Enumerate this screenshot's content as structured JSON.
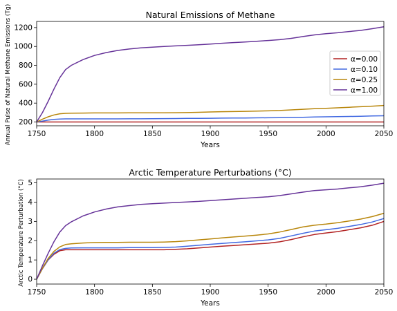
{
  "chart_data": [
    {
      "type": "line",
      "title": "Natural Emissions of Methane",
      "xlabel": "Years",
      "ylabel": "Annual Pulse of Natural Methane Emissions (Tg)",
      "xlim": [
        1750,
        2050
      ],
      "ylim": [
        160,
        1265
      ],
      "xticks": [
        1750,
        1800,
        1850,
        1900,
        1950,
        2000,
        2050
      ],
      "yticks": [
        200,
        400,
        600,
        800,
        1000,
        1200
      ],
      "legend": "center-right",
      "grid": false,
      "x": [
        1750,
        1755,
        1760,
        1765,
        1770,
        1775,
        1780,
        1790,
        1800,
        1810,
        1820,
        1830,
        1840,
        1850,
        1860,
        1870,
        1880,
        1890,
        1900,
        1910,
        1920,
        1930,
        1940,
        1950,
        1960,
        1970,
        1980,
        1990,
        2000,
        2010,
        2020,
        2030,
        2040,
        2050
      ],
      "series": [
        {
          "name": "α=0.00",
          "color": "#b22222",
          "values": [
            200,
            200,
            200,
            200,
            200,
            200,
            200,
            200,
            200,
            200,
            200,
            200,
            200,
            200,
            200,
            200,
            200,
            200,
            200,
            200,
            200,
            200,
            200,
            200,
            200,
            200,
            200,
            200,
            200,
            200,
            200,
            200,
            200,
            200
          ]
        },
        {
          "name": "α=0.10",
          "color": "#4169e1",
          "values": [
            200,
            210,
            220,
            227,
            231,
            233,
            233,
            233,
            233,
            233,
            233,
            234,
            234,
            235,
            236,
            237,
            238,
            239,
            240,
            241,
            242,
            243,
            244,
            245,
            246,
            248,
            250,
            253,
            255,
            257,
            259,
            261,
            264,
            266
          ]
        },
        {
          "name": "α=0.25",
          "color": "#b8860b",
          "values": [
            200,
            230,
            255,
            275,
            287,
            292,
            294,
            295,
            296,
            296,
            296,
            297,
            297,
            297,
            297,
            298,
            300,
            303,
            306,
            309,
            311,
            313,
            315,
            318,
            322,
            328,
            335,
            341,
            345,
            350,
            356,
            362,
            368,
            375
          ]
        },
        {
          "name": "α=1.00",
          "color": "#663399",
          "values": [
            200,
            300,
            420,
            550,
            670,
            755,
            800,
            860,
            905,
            935,
            958,
            973,
            985,
            993,
            1000,
            1006,
            1012,
            1018,
            1026,
            1034,
            1041,
            1048,
            1055,
            1063,
            1072,
            1086,
            1105,
            1122,
            1135,
            1145,
            1158,
            1170,
            1188,
            1208
          ]
        }
      ]
    },
    {
      "type": "line",
      "title": "Arctic Temperature Perturbations (°C)",
      "xlabel": "Years",
      "ylabel": "Arctic Temperature Perturbation (°C)",
      "xlim": [
        1750,
        2050
      ],
      "ylim": [
        -0.25,
        5.2
      ],
      "xticks": [
        1750,
        1800,
        1850,
        1900,
        1950,
        2000,
        2050
      ],
      "yticks": [
        0,
        1,
        2,
        3,
        4,
        5
      ],
      "grid": false,
      "x": [
        1750,
        1755,
        1760,
        1765,
        1770,
        1775,
        1780,
        1790,
        1800,
        1810,
        1820,
        1830,
        1840,
        1850,
        1860,
        1870,
        1880,
        1890,
        1900,
        1910,
        1920,
        1930,
        1940,
        1950,
        1960,
        1970,
        1980,
        1990,
        2000,
        2010,
        2020,
        2030,
        2040,
        2050
      ],
      "series": [
        {
          "name": "α=0.00",
          "color": "#b22222",
          "values": [
            0,
            0.55,
            1.0,
            1.3,
            1.48,
            1.53,
            1.53,
            1.53,
            1.53,
            1.53,
            1.53,
            1.53,
            1.53,
            1.53,
            1.53,
            1.55,
            1.58,
            1.62,
            1.67,
            1.71,
            1.75,
            1.79,
            1.83,
            1.87,
            1.94,
            2.06,
            2.2,
            2.32,
            2.4,
            2.47,
            2.57,
            2.67,
            2.8,
            3.0
          ]
        },
        {
          "name": "α=0.10",
          "color": "#4169e1",
          "values": [
            0,
            0.56,
            1.02,
            1.35,
            1.54,
            1.6,
            1.62,
            1.63,
            1.63,
            1.63,
            1.63,
            1.64,
            1.64,
            1.64,
            1.65,
            1.67,
            1.71,
            1.76,
            1.81,
            1.86,
            1.9,
            1.94,
            1.99,
            2.04,
            2.12,
            2.25,
            2.38,
            2.5,
            2.57,
            2.64,
            2.74,
            2.84,
            2.97,
            3.15
          ]
        },
        {
          "name": "α=0.25",
          "color": "#b8860b",
          "values": [
            0,
            0.58,
            1.08,
            1.45,
            1.68,
            1.8,
            1.84,
            1.88,
            1.9,
            1.91,
            1.91,
            1.92,
            1.92,
            1.92,
            1.93,
            1.95,
            1.99,
            2.04,
            2.09,
            2.14,
            2.19,
            2.24,
            2.29,
            2.35,
            2.45,
            2.58,
            2.71,
            2.8,
            2.86,
            2.93,
            3.02,
            3.12,
            3.25,
            3.42
          ]
        },
        {
          "name": "α=1.00",
          "color": "#663399",
          "values": [
            0,
            0.7,
            1.35,
            1.95,
            2.45,
            2.78,
            2.98,
            3.28,
            3.49,
            3.64,
            3.75,
            3.82,
            3.88,
            3.92,
            3.95,
            3.98,
            4.01,
            4.04,
            4.08,
            4.12,
            4.16,
            4.2,
            4.24,
            4.28,
            4.34,
            4.43,
            4.52,
            4.6,
            4.64,
            4.68,
            4.74,
            4.8,
            4.88,
            4.98
          ]
        }
      ]
    }
  ]
}
